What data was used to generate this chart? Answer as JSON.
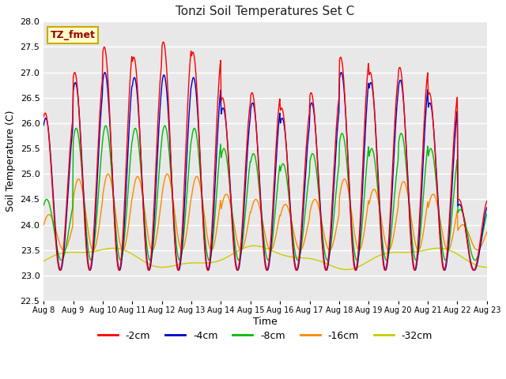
{
  "title": "Tonzi Soil Temperatures Set C",
  "xlabel": "Time",
  "ylabel": "Soil Temperature (C)",
  "ylim": [
    22.5,
    28.0
  ],
  "xtick_labels": [
    "Aug 8",
    "Aug 9",
    "Aug 10",
    "Aug 11",
    "Aug 12",
    "Aug 13",
    "Aug 14",
    "Aug 15",
    "Aug 16",
    "Aug 17",
    "Aug 18",
    "Aug 19",
    "Aug 20",
    "Aug 21",
    "Aug 22",
    "Aug 23"
  ],
  "ytick_vals": [
    22.5,
    23.0,
    23.5,
    24.0,
    24.5,
    25.0,
    25.5,
    26.0,
    26.5,
    27.0,
    27.5,
    28.0
  ],
  "annotation_text": "TZ_fmet",
  "annotation_box_color": "#ffffcc",
  "annotation_text_color": "#990000",
  "annotation_border_color": "#ccaa00",
  "line_colors": {
    "-2cm": "#ff0000",
    "-4cm": "#0000cc",
    "-8cm": "#00bb00",
    "-16cm": "#ff8800",
    "-32cm": "#cccc00"
  },
  "legend_labels": [
    "-2cm",
    "-4cm",
    "-8cm",
    "-16cm",
    "-32cm"
  ],
  "legend_colors": [
    "#ff0000",
    "#0000cc",
    "#00bb00",
    "#ff8800",
    "#cccc00"
  ],
  "bg_color": "#e8e8e8",
  "plot_bg_color": "#e8e8e8",
  "grid_color": "#ffffff",
  "linewidth": 1.0,
  "days": 15,
  "n_per_day": 48
}
